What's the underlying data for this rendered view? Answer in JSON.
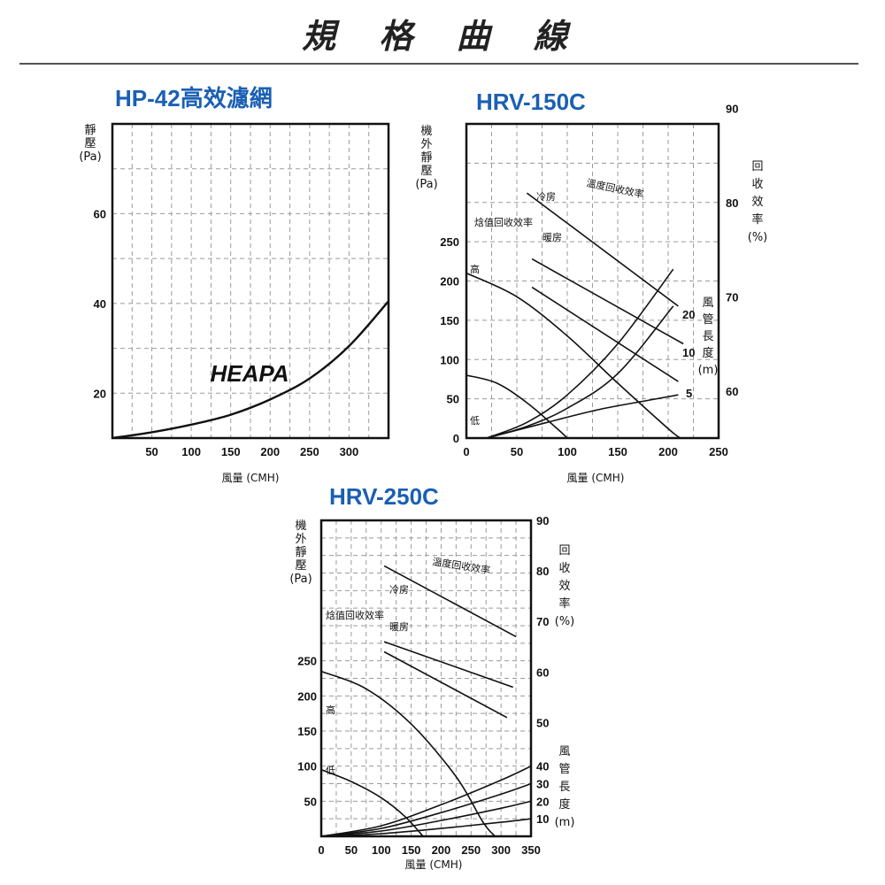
{
  "page": {
    "title": "規 格 曲 線"
  },
  "chart_data": [
    {
      "type": "line",
      "title": "HP-42高效濾網",
      "xlabel": "風量 (CMH)",
      "ylabel": [
        "靜",
        "壓",
        "(Pa)"
      ],
      "brand_text": "HEAPA",
      "xlim": [
        0,
        350
      ],
      "ylim": [
        10,
        80
      ],
      "xticks": [
        50,
        100,
        150,
        200,
        250,
        300
      ],
      "yticks": [
        20,
        40,
        60
      ],
      "grid": true,
      "series": [
        {
          "x": [
            0,
            50,
            100,
            150,
            200,
            250,
            300,
            350
          ],
          "y": [
            10,
            11.3,
            13,
            15.2,
            18.6,
            23.3,
            30.5,
            40.5
          ]
        }
      ]
    },
    {
      "type": "line",
      "title": "HRV-150C",
      "xlabel": "風量 (CMH)",
      "ylabel": [
        "機",
        "外",
        "靜",
        "壓",
        "(Pa)"
      ],
      "y2label": [
        "回",
        "收",
        "效",
        "率",
        "(%)"
      ],
      "y3label": [
        "風",
        "管",
        "長",
        "度",
        "(m)"
      ],
      "xlim": [
        0,
        250
      ],
      "ylim": [
        0,
        400
      ],
      "xticks": [
        0,
        50,
        100,
        150,
        200,
        250
      ],
      "yticks": [
        0,
        50,
        100,
        150,
        200,
        250
      ],
      "y2ticks": [
        60,
        70,
        80,
        90
      ],
      "grid": true,
      "curve_labels": {
        "temp_eff": "溫度回收效率",
        "enth_eff": "焓值回收效率",
        "cool": "冷房",
        "heat": "暖房",
        "high": "高",
        "low": "低"
      },
      "duct_labels": [
        "20",
        "10",
        "5"
      ],
      "series": [
        {
          "name": "溫度回收效率",
          "axis": "y2",
          "x": [
            60,
            210
          ],
          "y": [
            81,
            69
          ]
        },
        {
          "name": "焓值回收效率 冷房",
          "axis": "y2",
          "x": [
            65,
            215
          ],
          "y": [
            74,
            65
          ]
        },
        {
          "name": "焓值回收效率 暖房",
          "axis": "y2",
          "x": [
            65,
            210
          ],
          "y": [
            71,
            61
          ]
        },
        {
          "name": "高",
          "axis": "y",
          "x": [
            0,
            50,
            100,
            150,
            200,
            212
          ],
          "y": [
            210,
            180,
            130,
            70,
            12,
            0
          ]
        },
        {
          "name": "低",
          "axis": "y",
          "x": [
            0,
            30,
            60,
            90,
            100
          ],
          "y": [
            80,
            70,
            45,
            12,
            0
          ]
        },
        {
          "name": "20",
          "axis": "y3",
          "x": [
            20,
            60,
            100,
            150,
            205
          ],
          "y": [
            0,
            20,
            55,
            120,
            215
          ]
        },
        {
          "name": "10",
          "axis": "y3",
          "x": [
            20,
            60,
            100,
            150,
            205
          ],
          "y": [
            0,
            15,
            38,
            82,
            168
          ]
        },
        {
          "name": "5",
          "axis": "y3",
          "x": [
            20,
            80,
            130,
            180,
            210
          ],
          "y": [
            0,
            20,
            36,
            48,
            55
          ]
        }
      ]
    },
    {
      "type": "line",
      "title": "HRV-250C",
      "xlabel": "風量 (CMH)",
      "ylabel": [
        "機",
        "外",
        "靜",
        "壓",
        "(Pa)"
      ],
      "y2label": [
        "回",
        "收",
        "效",
        "率",
        "(%)"
      ],
      "y3label": [
        "風",
        "管",
        "長",
        "度",
        "(m)"
      ],
      "xlim": [
        0,
        350
      ],
      "ylim": [
        0,
        450
      ],
      "xticks": [
        0,
        50,
        100,
        150,
        200,
        250,
        300,
        350
      ],
      "yticks": [
        50,
        100,
        150,
        200,
        250
      ],
      "y2ticks": [
        50,
        60,
        70,
        80,
        90
      ],
      "y3ticks": [
        10,
        20,
        30,
        40
      ],
      "grid": true,
      "curve_labels": {
        "temp_eff": "溫度回收效率",
        "enth_eff": "焓值回收效率",
        "cool": "冷房",
        "heat": "暖房",
        "high": "高",
        "low": "低"
      },
      "series": [
        {
          "name": "溫度回收效率",
          "axis": "y2",
          "x": [
            105,
            325
          ],
          "y": [
            81,
            67
          ]
        },
        {
          "name": "焓值回收效率 冷房",
          "axis": "y2",
          "x": [
            105,
            320
          ],
          "y": [
            66,
            57
          ]
        },
        {
          "name": "焓值回收效率 暖房",
          "axis": "y2",
          "x": [
            105,
            310
          ],
          "y": [
            64,
            51
          ]
        },
        {
          "name": "高",
          "axis": "y",
          "x": [
            0,
            75,
            150,
            225,
            270,
            290
          ],
          "y": [
            235,
            210,
            160,
            85,
            20,
            0
          ]
        },
        {
          "name": "低",
          "axis": "y",
          "x": [
            0,
            50,
            100,
            140,
            170
          ],
          "y": [
            95,
            78,
            55,
            28,
            0
          ]
        },
        {
          "name": "40",
          "axis": "y3",
          "x": [
            0,
            100,
            200,
            300,
            350
          ],
          "y": [
            0,
            6,
            18,
            32,
            40
          ]
        },
        {
          "name": "30",
          "axis": "y3",
          "x": [
            0,
            100,
            200,
            300,
            350
          ],
          "y": [
            0,
            4.5,
            13.5,
            24,
            30
          ]
        },
        {
          "name": "20",
          "axis": "y3",
          "x": [
            0,
            100,
            200,
            300,
            350
          ],
          "y": [
            0,
            3,
            9,
            16,
            20
          ]
        },
        {
          "name": "10",
          "axis": "y3",
          "x": [
            0,
            100,
            200,
            300,
            350
          ],
          "y": [
            0,
            1.5,
            4.5,
            8,
            10
          ]
        }
      ]
    }
  ]
}
